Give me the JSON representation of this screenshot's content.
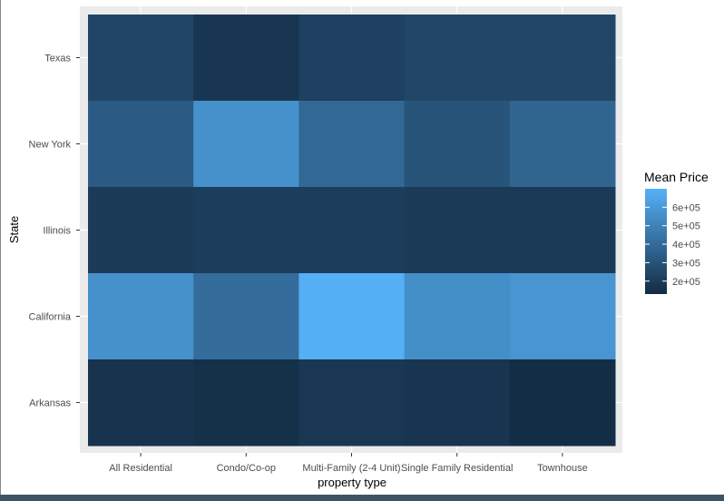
{
  "chart_data": {
    "type": "heatmap",
    "xlabel": "property type",
    "ylabel": "State",
    "x_categories": [
      "All Residential",
      "Condo/Co-op",
      "Multi-Family (2-4 Unit)",
      "Single Family Residential",
      "Townhouse"
    ],
    "y_categories": [
      "Texas",
      "New York",
      "Illinois",
      "California",
      "Arkansas"
    ],
    "values": [
      [
        240000,
        175000,
        225000,
        245000,
        245000
      ],
      [
        335000,
        565000,
        390000,
        305000,
        375000
      ],
      [
        200000,
        205000,
        210000,
        200000,
        195000
      ],
      [
        565000,
        410000,
        690000,
        555000,
        580000
      ],
      [
        165000,
        150000,
        180000,
        170000,
        140000
      ]
    ],
    "legend": {
      "title": "Mean Price",
      "ticks": [
        200000,
        300000,
        400000,
        500000,
        600000
      ],
      "tick_labels": [
        "2e+05",
        "3e+05",
        "4e+05",
        "5e+05",
        "6e+05"
      ],
      "range": [
        130000,
        700000
      ],
      "position": "right"
    },
    "colors": {
      "low": "#132B43",
      "high": "#56B1F7",
      "panel_background": "#EBEBEB",
      "grid": "#FFFFFF"
    },
    "grid": true
  }
}
